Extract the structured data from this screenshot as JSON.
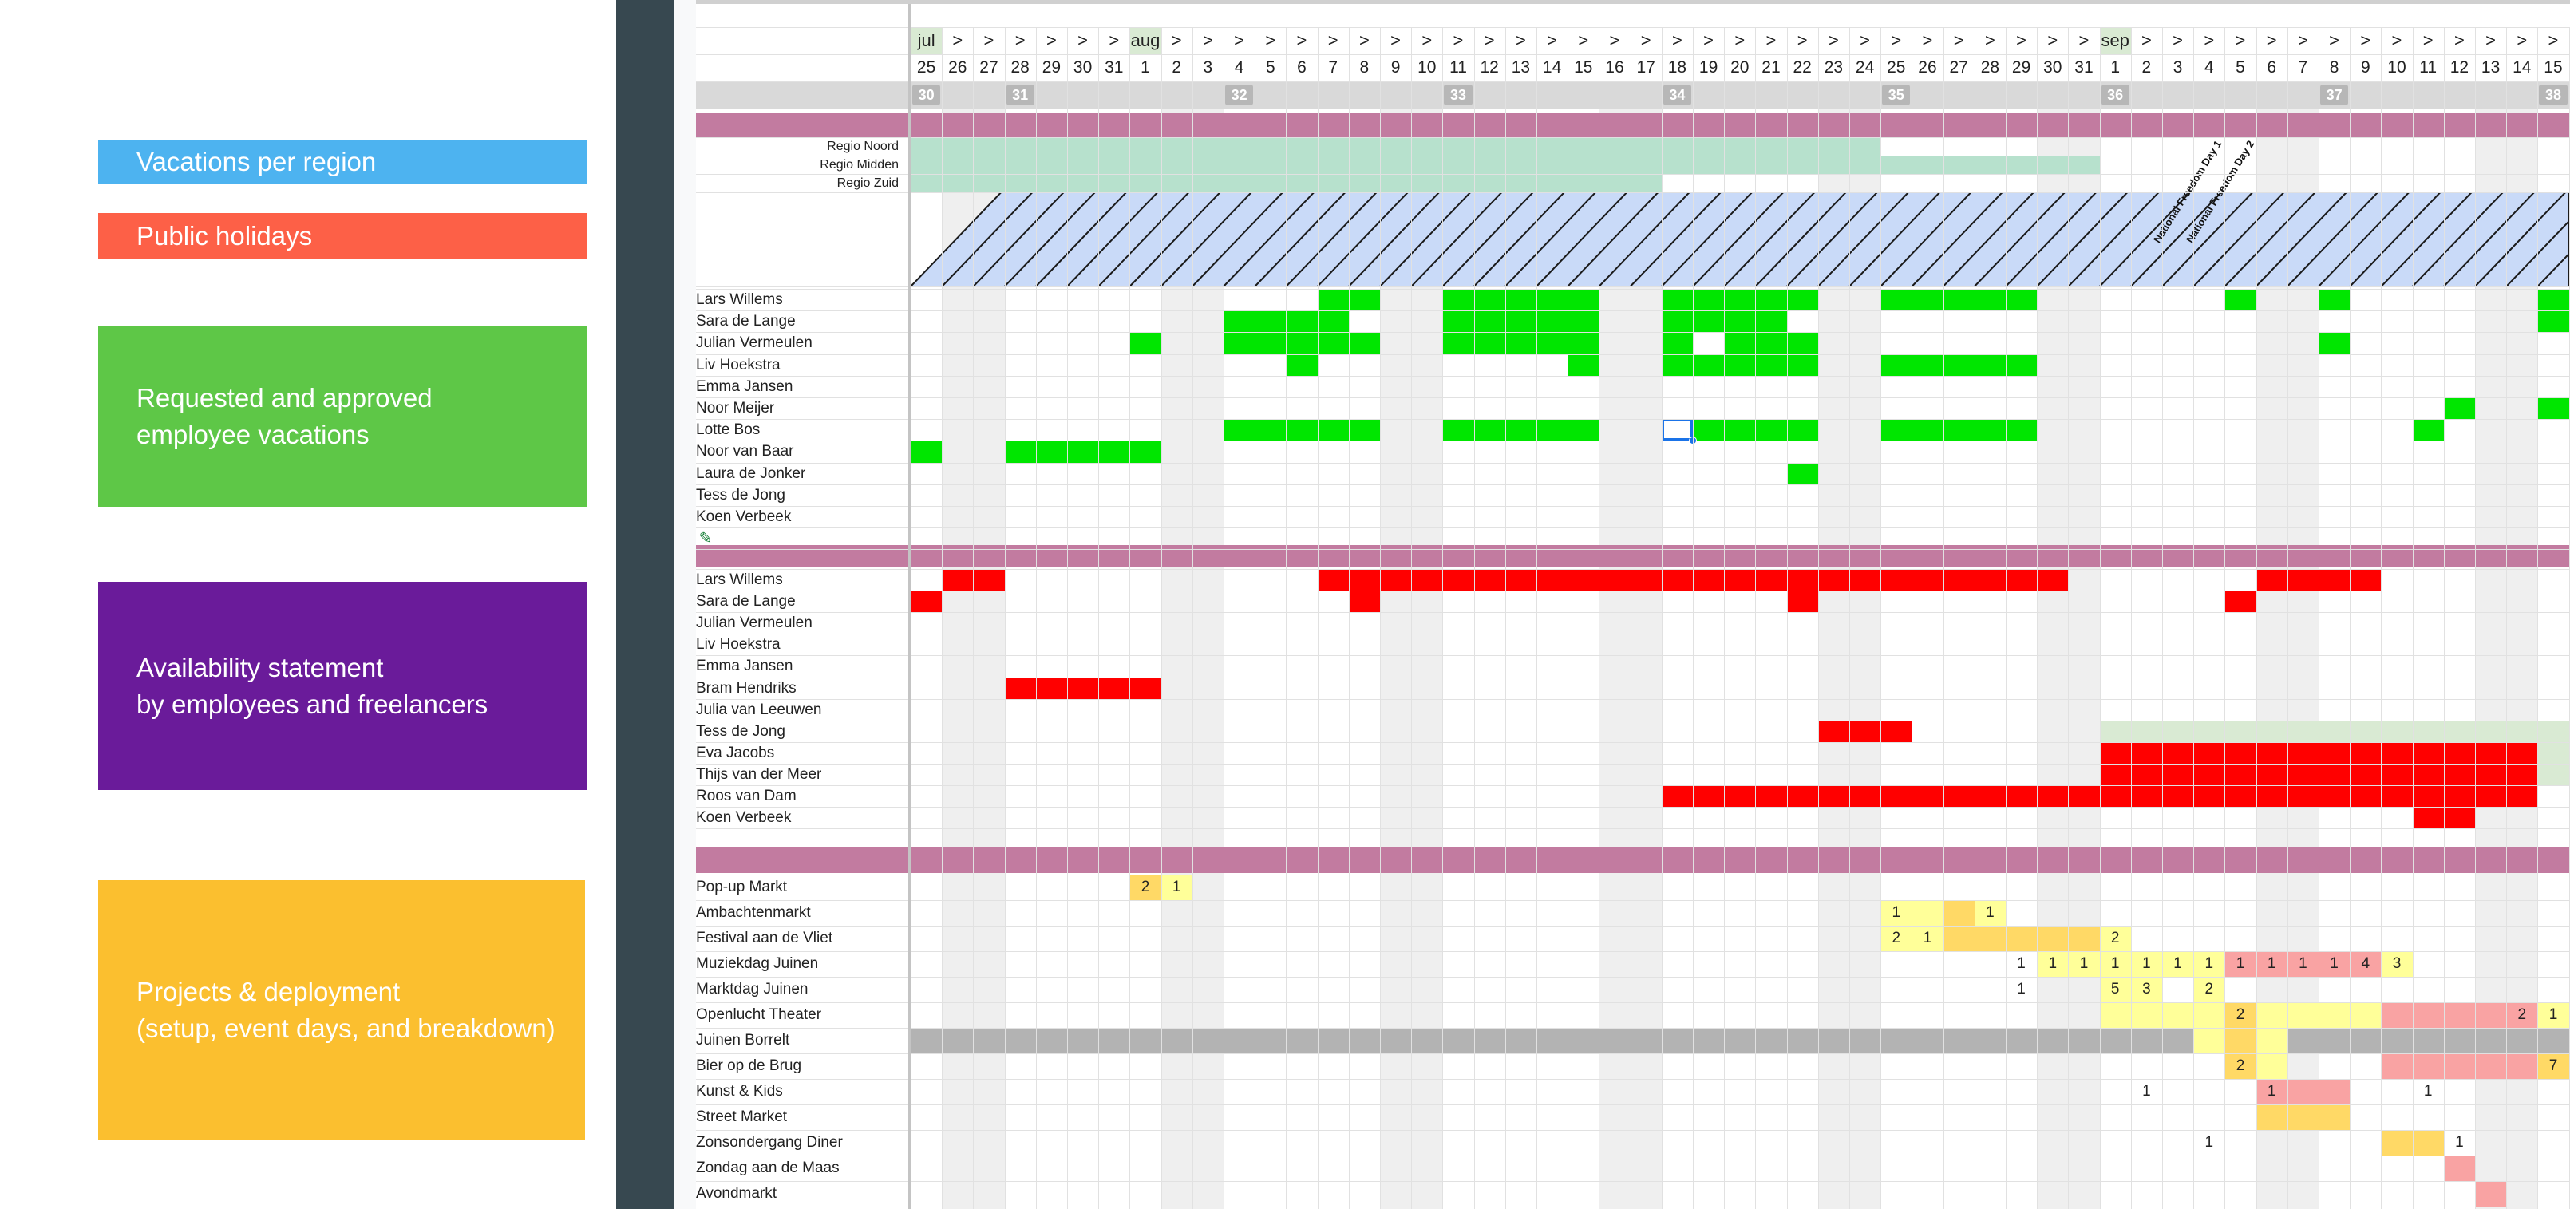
{
  "legend": [
    {
      "key": "vacations",
      "lines": [
        "Vacations per region"
      ],
      "color": "#4db3f0"
    },
    {
      "key": "holidays",
      "lines": [
        "Public holidays"
      ],
      "color": "#fd6047"
    },
    {
      "key": "requested",
      "lines": [
        "Requested and approved",
        "employee vacations"
      ],
      "color": "#5ec747"
    },
    {
      "key": "availability",
      "lines": [
        "Availability statement",
        "by employees and freelancers"
      ],
      "color": "#6a1b9a"
    },
    {
      "key": "projects",
      "lines": [
        "Projects & deployment",
        "(setup, event days, and breakdown)"
      ],
      "color": "#fbbf2f"
    }
  ],
  "timeline": {
    "days": [
      "25",
      "26",
      "27",
      "28",
      "29",
      "30",
      "31",
      "1",
      "2",
      "3",
      "4",
      "5",
      "6",
      "7",
      "8",
      "9",
      "10",
      "11",
      "12",
      "13",
      "14",
      "15",
      "16",
      "17",
      "18",
      "19",
      "20",
      "21",
      "22",
      "23",
      "24",
      "25",
      "26",
      "27",
      "28",
      "29",
      "30",
      "31",
      "1",
      "2",
      "3",
      "4",
      "5",
      "6",
      "7",
      "8",
      "9",
      "10",
      "11",
      "12",
      "13",
      "14",
      "15"
    ],
    "months": [
      {
        "index": 0,
        "label": "jul"
      },
      {
        "index": 7,
        "label": "aug"
      },
      {
        "index": 38,
        "label": "sep"
      }
    ],
    "month_marker": ">",
    "weeks": [
      {
        "index": 0,
        "label": "30"
      },
      {
        "index": 3,
        "label": "31"
      },
      {
        "index": 10,
        "label": "32"
      },
      {
        "index": 17,
        "label": "33"
      },
      {
        "index": 24,
        "label": "34"
      },
      {
        "index": 31,
        "label": "35"
      },
      {
        "index": 38,
        "label": "36"
      },
      {
        "index": 45,
        "label": "37"
      },
      {
        "index": 52,
        "label": "38"
      }
    ],
    "weekend_indices": [
      1,
      2,
      8,
      9,
      15,
      16,
      22,
      23,
      29,
      30,
      36,
      37,
      43,
      44,
      50,
      51
    ]
  },
  "colors": {
    "band": "#c27ba0",
    "region": "#b7e1cd",
    "holiday_fill": "#c9daf8",
    "vacation": "#00e600",
    "unavailable": "#ff0000",
    "weekend": "#efefef",
    "week_header": "#cccccc",
    "light_green": "#d9ead3",
    "proj_light": "#ffff99",
    "proj_mid": "#ffd966",
    "proj_red": "#f9a3a3",
    "proj_gray": "#b3b3b3"
  },
  "regions": [
    {
      "label": "Regio Noord",
      "start": 0,
      "end": 30
    },
    {
      "label": "Regio Midden",
      "start": 0,
      "end": 37
    },
    {
      "label": "Regio Zuid",
      "start": 0,
      "end": 23
    }
  ],
  "holidays": [
    "National Freedom Day 1",
    "National Freedom Day 2"
  ],
  "vacation_rows": [
    {
      "name": "Lars Willems",
      "cells": [
        13,
        14,
        17,
        18,
        19,
        20,
        21,
        24,
        25,
        26,
        27,
        28,
        31,
        32,
        33,
        34,
        35,
        42,
        45,
        52
      ]
    },
    {
      "name": "Sara de Lange",
      "cells": [
        10,
        11,
        12,
        13,
        17,
        18,
        19,
        20,
        21,
        24,
        25,
        26,
        27,
        52
      ]
    },
    {
      "name": "Julian Vermeulen",
      "cells": [
        7,
        10,
        11,
        12,
        13,
        14,
        17,
        18,
        19,
        20,
        21,
        24,
        26,
        27,
        28,
        45
      ]
    },
    {
      "name": "Liv Hoekstra",
      "cells": [
        12,
        21,
        24,
        25,
        26,
        27,
        28,
        31,
        32,
        33,
        34,
        35
      ]
    },
    {
      "name": "Emma Jansen",
      "cells": []
    },
    {
      "name": "Noor Meijer",
      "cells": [
        49,
        52
      ]
    },
    {
      "name": "Lotte Bos",
      "cells": [
        10,
        11,
        12,
        13,
        14,
        17,
        18,
        19,
        20,
        21,
        25,
        26,
        27,
        28,
        31,
        32,
        33,
        34,
        35,
        48
      ]
    },
    {
      "name": "Noor van Baar",
      "cells": [
        0,
        3,
        4,
        5,
        6,
        7
      ]
    },
    {
      "name": "Laura de Jonker",
      "cells": [
        28
      ]
    },
    {
      "name": "Tess de Jong",
      "cells": []
    },
    {
      "name": "Koen Verbeek",
      "cells": []
    }
  ],
  "availability_rows": [
    {
      "name": "Lars Willems",
      "red": [
        1,
        2,
        13,
        14,
        15,
        16,
        17,
        18,
        19,
        20,
        21,
        22,
        23,
        24,
        25,
        26,
        27,
        28,
        29,
        30,
        31,
        32,
        33,
        34,
        35,
        36,
        43,
        44,
        45,
        46
      ],
      "green": []
    },
    {
      "name": "Sara de Lange",
      "red": [
        0,
        14,
        28,
        42
      ],
      "green": []
    },
    {
      "name": "Julian Vermeulen",
      "red": [],
      "green": []
    },
    {
      "name": "Liv Hoekstra",
      "red": [],
      "green": []
    },
    {
      "name": "Emma Jansen",
      "red": [],
      "green": []
    },
    {
      "name": "Bram Hendriks",
      "red": [
        3,
        4,
        5,
        6,
        7
      ],
      "green": []
    },
    {
      "name": "Julia van Leeuwen",
      "red": [],
      "green": []
    },
    {
      "name": "Tess de Jong",
      "red": [
        29,
        30,
        31
      ],
      "green": [
        38,
        39,
        40,
        41,
        42,
        43,
        44,
        45,
        46,
        47,
        48,
        49,
        50,
        51,
        52
      ]
    },
    {
      "name": "Eva Jacobs",
      "red": [
        38,
        39,
        40,
        41,
        42,
        43,
        44,
        45,
        46,
        47,
        48,
        49,
        50,
        51
      ],
      "green": [
        52
      ]
    },
    {
      "name": "Thijs van der Meer",
      "red": [
        38,
        39,
        40,
        41,
        42,
        43,
        44,
        45,
        46,
        47,
        48,
        49,
        50,
        51
      ],
      "green": [
        52
      ]
    },
    {
      "name": "Roos van Dam",
      "red": [
        24,
        25,
        26,
        27,
        28,
        29,
        30,
        31,
        32,
        33,
        34,
        35,
        36,
        37,
        38,
        39,
        40,
        41,
        42,
        43,
        44,
        45,
        46,
        47,
        48,
        49,
        50,
        51
      ],
      "green": []
    },
    {
      "name": "Koen Verbeek",
      "red": [
        48,
        49
      ],
      "green": []
    }
  ],
  "projects": [
    {
      "name": "Pop-up Markt",
      "cells": [
        {
          "i": 7,
          "c": "mid",
          "t": "2"
        },
        {
          "i": 8,
          "c": "light",
          "t": "1"
        }
      ]
    },
    {
      "name": "Ambachtenmarkt",
      "cells": [
        {
          "i": 31,
          "c": "light",
          "t": "1"
        },
        {
          "i": 32,
          "c": "light",
          "t": ""
        },
        {
          "i": 33,
          "c": "mid",
          "t": ""
        },
        {
          "i": 34,
          "c": "light",
          "t": "1"
        }
      ]
    },
    {
      "name": "Festival aan de Vliet",
      "cells": [
        {
          "i": 31,
          "c": "light",
          "t": "2"
        },
        {
          "i": 32,
          "c": "light",
          "t": "1"
        },
        {
          "i": 33,
          "c": "mid",
          "t": ""
        },
        {
          "i": 34,
          "c": "mid",
          "t": ""
        },
        {
          "i": 35,
          "c": "mid",
          "t": ""
        },
        {
          "i": 36,
          "c": "mid",
          "t": ""
        },
        {
          "i": 37,
          "c": "mid",
          "t": ""
        },
        {
          "i": 38,
          "c": "light",
          "t": "2"
        }
      ]
    },
    {
      "name": "Muziekdag Juinen",
      "cells": [
        {
          "i": 35,
          "c": "",
          "t": "1"
        },
        {
          "i": 36,
          "c": "light",
          "t": "1"
        },
        {
          "i": 37,
          "c": "light",
          "t": "1"
        },
        {
          "i": 38,
          "c": "light",
          "t": "1"
        },
        {
          "i": 39,
          "c": "light",
          "t": "1"
        },
        {
          "i": 40,
          "c": "light",
          "t": "1"
        },
        {
          "i": 41,
          "c": "light",
          "t": "1"
        },
        {
          "i": 42,
          "c": "red",
          "t": "1"
        },
        {
          "i": 43,
          "c": "red",
          "t": "1"
        },
        {
          "i": 44,
          "c": "red",
          "t": "1"
        },
        {
          "i": 45,
          "c": "red",
          "t": "1"
        },
        {
          "i": 46,
          "c": "red",
          "t": "4"
        },
        {
          "i": 47,
          "c": "light",
          "t": "3"
        }
      ]
    },
    {
      "name": "Marktdag Juinen",
      "cells": [
        {
          "i": 35,
          "c": "",
          "t": "1"
        },
        {
          "i": 38,
          "c": "light",
          "t": "5"
        },
        {
          "i": 39,
          "c": "light",
          "t": "3"
        },
        {
          "i": 41,
          "c": "light",
          "t": "2"
        }
      ]
    },
    {
      "name": "Openlucht Theater",
      "cells": [
        {
          "i": 38,
          "c": "light",
          "t": ""
        },
        {
          "i": 39,
          "c": "light",
          "t": ""
        },
        {
          "i": 40,
          "c": "light",
          "t": ""
        },
        {
          "i": 41,
          "c": "light",
          "t": ""
        },
        {
          "i": 42,
          "c": "mid",
          "t": "2"
        },
        {
          "i": 43,
          "c": "light",
          "t": ""
        },
        {
          "i": 44,
          "c": "light",
          "t": ""
        },
        {
          "i": 45,
          "c": "light",
          "t": ""
        },
        {
          "i": 46,
          "c": "light",
          "t": ""
        },
        {
          "i": 47,
          "c": "red",
          "t": ""
        },
        {
          "i": 48,
          "c": "red",
          "t": ""
        },
        {
          "i": 49,
          "c": "red",
          "t": ""
        },
        {
          "i": 50,
          "c": "red",
          "t": ""
        },
        {
          "i": 51,
          "c": "red",
          "t": "2"
        },
        {
          "i": 52,
          "c": "light",
          "t": "1"
        }
      ]
    },
    {
      "name": "Juinen Borrelt",
      "cells": [
        {
          "i": 0,
          "c": "gray",
          "t": ""
        },
        {
          "i": 1,
          "c": "gray",
          "t": ""
        },
        {
          "i": 2,
          "c": "gray",
          "t": ""
        },
        {
          "i": 3,
          "c": "gray",
          "t": ""
        },
        {
          "i": 4,
          "c": "gray",
          "t": ""
        },
        {
          "i": 5,
          "c": "gray",
          "t": ""
        },
        {
          "i": 6,
          "c": "gray",
          "t": ""
        },
        {
          "i": 7,
          "c": "gray",
          "t": ""
        },
        {
          "i": 8,
          "c": "gray",
          "t": ""
        },
        {
          "i": 9,
          "c": "gray",
          "t": ""
        },
        {
          "i": 10,
          "c": "gray",
          "t": ""
        },
        {
          "i": 11,
          "c": "gray",
          "t": ""
        },
        {
          "i": 12,
          "c": "gray",
          "t": ""
        },
        {
          "i": 13,
          "c": "gray",
          "t": ""
        },
        {
          "i": 14,
          "c": "gray",
          "t": ""
        },
        {
          "i": 15,
          "c": "gray",
          "t": ""
        },
        {
          "i": 16,
          "c": "gray",
          "t": ""
        },
        {
          "i": 17,
          "c": "gray",
          "t": ""
        },
        {
          "i": 18,
          "c": "gray",
          "t": ""
        },
        {
          "i": 19,
          "c": "gray",
          "t": ""
        },
        {
          "i": 20,
          "c": "gray",
          "t": ""
        },
        {
          "i": 21,
          "c": "gray",
          "t": ""
        },
        {
          "i": 22,
          "c": "gray",
          "t": ""
        },
        {
          "i": 23,
          "c": "gray",
          "t": ""
        },
        {
          "i": 24,
          "c": "gray",
          "t": ""
        },
        {
          "i": 25,
          "c": "gray",
          "t": ""
        },
        {
          "i": 26,
          "c": "gray",
          "t": ""
        },
        {
          "i": 27,
          "c": "gray",
          "t": ""
        },
        {
          "i": 28,
          "c": "gray",
          "t": ""
        },
        {
          "i": 29,
          "c": "gray",
          "t": ""
        },
        {
          "i": 30,
          "c": "gray",
          "t": ""
        },
        {
          "i": 31,
          "c": "gray",
          "t": ""
        },
        {
          "i": 32,
          "c": "gray",
          "t": ""
        },
        {
          "i": 33,
          "c": "gray",
          "t": ""
        },
        {
          "i": 34,
          "c": "gray",
          "t": ""
        },
        {
          "i": 35,
          "c": "gray",
          "t": ""
        },
        {
          "i": 36,
          "c": "gray",
          "t": ""
        },
        {
          "i": 37,
          "c": "gray",
          "t": ""
        },
        {
          "i": 38,
          "c": "gray",
          "t": ""
        },
        {
          "i": 39,
          "c": "gray",
          "t": ""
        },
        {
          "i": 40,
          "c": "gray",
          "t": ""
        },
        {
          "i": 41,
          "c": "light",
          "t": ""
        },
        {
          "i": 42,
          "c": "mid",
          "t": ""
        },
        {
          "i": 43,
          "c": "light",
          "t": ""
        },
        {
          "i": 44,
          "c": "gray",
          "t": ""
        },
        {
          "i": 45,
          "c": "gray",
          "t": ""
        },
        {
          "i": 46,
          "c": "gray",
          "t": ""
        },
        {
          "i": 47,
          "c": "gray",
          "t": ""
        },
        {
          "i": 48,
          "c": "gray",
          "t": ""
        },
        {
          "i": 49,
          "c": "gray",
          "t": ""
        },
        {
          "i": 50,
          "c": "gray",
          "t": ""
        },
        {
          "i": 51,
          "c": "gray",
          "t": ""
        },
        {
          "i": 52,
          "c": "gray",
          "t": ""
        }
      ]
    },
    {
      "name": "Bier op de Brug",
      "cells": [
        {
          "i": 42,
          "c": "mid",
          "t": "2"
        },
        {
          "i": 43,
          "c": "light",
          "t": ""
        },
        {
          "i": 47,
          "c": "red",
          "t": ""
        },
        {
          "i": 48,
          "c": "red",
          "t": ""
        },
        {
          "i": 49,
          "c": "red",
          "t": ""
        },
        {
          "i": 50,
          "c": "red",
          "t": ""
        },
        {
          "i": 51,
          "c": "red",
          "t": ""
        },
        {
          "i": 52,
          "c": "mid",
          "t": "7"
        }
      ]
    },
    {
      "name": "Kunst & Kids",
      "cells": [
        {
          "i": 39,
          "c": "",
          "t": "1"
        },
        {
          "i": 43,
          "c": "red",
          "t": "1"
        },
        {
          "i": 44,
          "c": "red",
          "t": ""
        },
        {
          "i": 45,
          "c": "red",
          "t": ""
        },
        {
          "i": 48,
          "c": "",
          "t": "1"
        }
      ]
    },
    {
      "name": "Street Market",
      "cells": [
        {
          "i": 43,
          "c": "mid",
          "t": ""
        },
        {
          "i": 44,
          "c": "mid",
          "t": ""
        },
        {
          "i": 45,
          "c": "mid",
          "t": ""
        }
      ]
    },
    {
      "name": "Zonsondergang Diner",
      "cells": [
        {
          "i": 41,
          "c": "",
          "t": "1"
        },
        {
          "i": 47,
          "c": "mid",
          "t": ""
        },
        {
          "i": 48,
          "c": "mid",
          "t": ""
        },
        {
          "i": 49,
          "c": "",
          "t": "1"
        }
      ]
    },
    {
      "name": "Zondag aan de Maas",
      "cells": [
        {
          "i": 49,
          "c": "red",
          "t": ""
        }
      ]
    },
    {
      "name": "Avondmarkt",
      "cells": [
        {
          "i": 50,
          "c": "red",
          "t": ""
        }
      ]
    }
  ],
  "selected_cell": {
    "row": 6,
    "col": 24
  }
}
